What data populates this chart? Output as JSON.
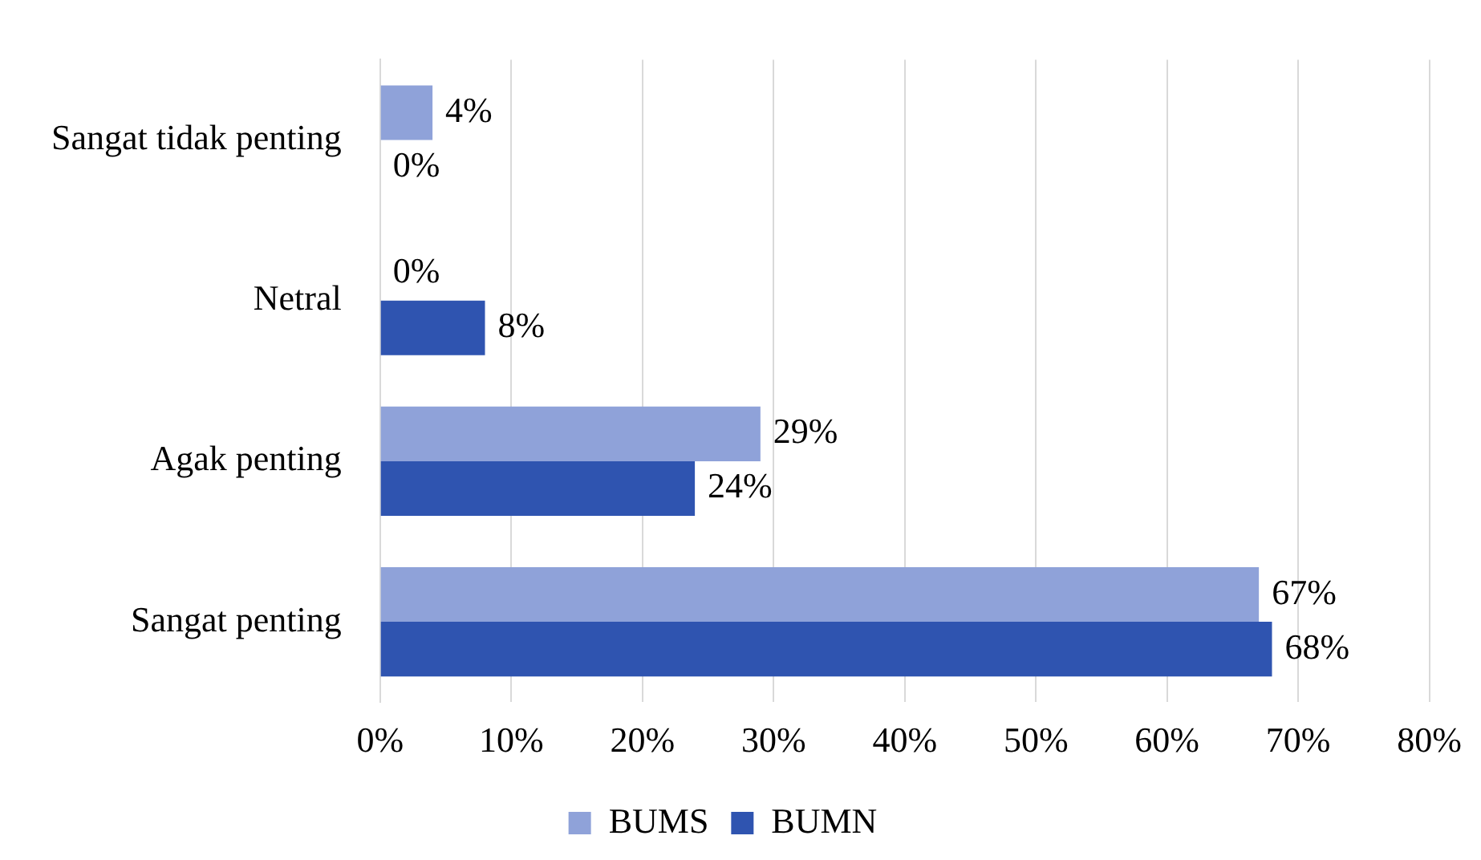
{
  "chart_data": {
    "type": "bar",
    "orientation": "horizontal",
    "categories": [
      "Sangat tidak penting",
      "Netral",
      "Agak penting",
      "Sangat penting"
    ],
    "series": [
      {
        "name": "BUMS",
        "color": "#8fa2d9",
        "values": [
          4,
          0,
          29,
          67
        ],
        "value_labels": [
          "4%",
          "0%",
          "29%",
          "67%"
        ]
      },
      {
        "name": "BUMN",
        "color": "#2f54b0",
        "values": [
          0,
          8,
          24,
          68
        ],
        "value_labels": [
          "0%",
          "8%",
          "24%",
          "68%"
        ]
      }
    ],
    "xlim": [
      0,
      80
    ],
    "xticks": [
      {
        "value": 0,
        "label": "0%"
      },
      {
        "value": 10,
        "label": "10%"
      },
      {
        "value": 20,
        "label": "20%"
      },
      {
        "value": 30,
        "label": "30%"
      },
      {
        "value": 40,
        "label": "40%"
      },
      {
        "value": 50,
        "label": "50%"
      },
      {
        "value": 60,
        "label": "60%"
      },
      {
        "value": 70,
        "label": "70%"
      },
      {
        "value": 80,
        "label": "80%"
      }
    ],
    "grid": "x",
    "legend": "bottom"
  }
}
